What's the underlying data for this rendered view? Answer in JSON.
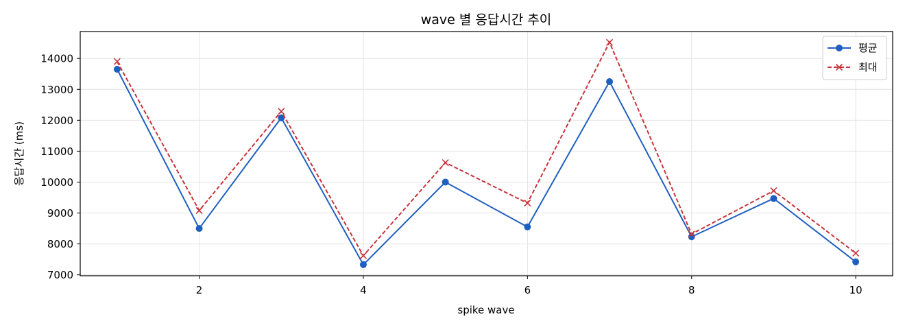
{
  "chart_data": {
    "type": "line",
    "title": "wave 별 응답시간 추이",
    "xlabel": "spike wave",
    "ylabel": "응답시간 (ms)",
    "x": [
      1,
      2,
      3,
      4,
      5,
      6,
      7,
      8,
      9,
      10
    ],
    "xlim": [
      0.55,
      10.45
    ],
    "ylim": [
      6970,
      14870
    ],
    "x_ticks": [
      2,
      4,
      6,
      8,
      10
    ],
    "y_ticks": [
      7000,
      8000,
      9000,
      10000,
      11000,
      12000,
      13000,
      14000
    ],
    "grid": true,
    "legend_position": "top-right",
    "series": [
      {
        "name": "평균",
        "values": [
          13650,
          8500,
          12080,
          7330,
          10000,
          8550,
          13250,
          8230,
          9470,
          7420
        ],
        "color": "#1f5fbf",
        "marker": "circle",
        "linestyle": "solid"
      },
      {
        "name": "최대",
        "values": [
          13900,
          9080,
          12290,
          7620,
          10630,
          9320,
          14520,
          8320,
          9720,
          7700
        ],
        "color": "#c8323a",
        "marker": "x",
        "linestyle": "dashed"
      }
    ]
  }
}
